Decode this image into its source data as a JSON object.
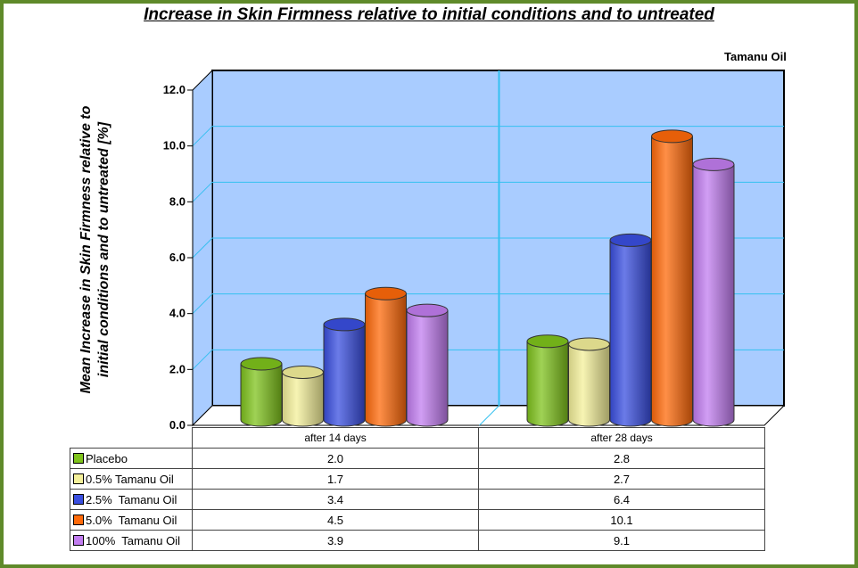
{
  "chart_data": {
    "type": "bar",
    "title": "Increase in Skin Firmness relative to initial conditions and to untreated",
    "series_group_label": "Tamanu Oil",
    "ylabel": "Mean Increase in Skin Firmness relative to initial conditions and to untreated [%]",
    "xlabel": "",
    "ylim": [
      0,
      12
    ],
    "yticks": [
      "0.0",
      "2.0",
      "4.0",
      "6.0",
      "8.0",
      "10.0",
      "12.0"
    ],
    "grid": true,
    "legend": "table-left",
    "categories": [
      "after 14 days",
      "after 28 days"
    ],
    "series": [
      {
        "name": "Placebo",
        "values": [
          2.0,
          2.8
        ],
        "display": [
          "2.0",
          "2.8"
        ],
        "color": "#7fc31c"
      },
      {
        "name": "0.5% Tamanu Oil",
        "values": [
          1.7,
          2.7
        ],
        "display": [
          "1.7",
          "2.7"
        ],
        "color": "#f4f09a"
      },
      {
        "name": "2.5%  Tamanu Oil",
        "values": [
          3.4,
          6.4
        ],
        "display": [
          "3.4",
          "6.4"
        ],
        "color": "#3a4fe0"
      },
      {
        "name": "5.0%  Tamanu Oil",
        "values": [
          4.5,
          10.1
        ],
        "display": [
          "4.5",
          "10.1"
        ],
        "color": "#ff6a0a"
      },
      {
        "name": "100%  Tamanu Oil",
        "values": [
          3.9,
          9.1
        ],
        "display": [
          "3.9",
          "9.1"
        ],
        "color": "#c27df0"
      }
    ]
  },
  "colors": {
    "frame": "#5f8a2a",
    "plot_back": "#a9ccff",
    "gridline": "#35c0f0"
  }
}
